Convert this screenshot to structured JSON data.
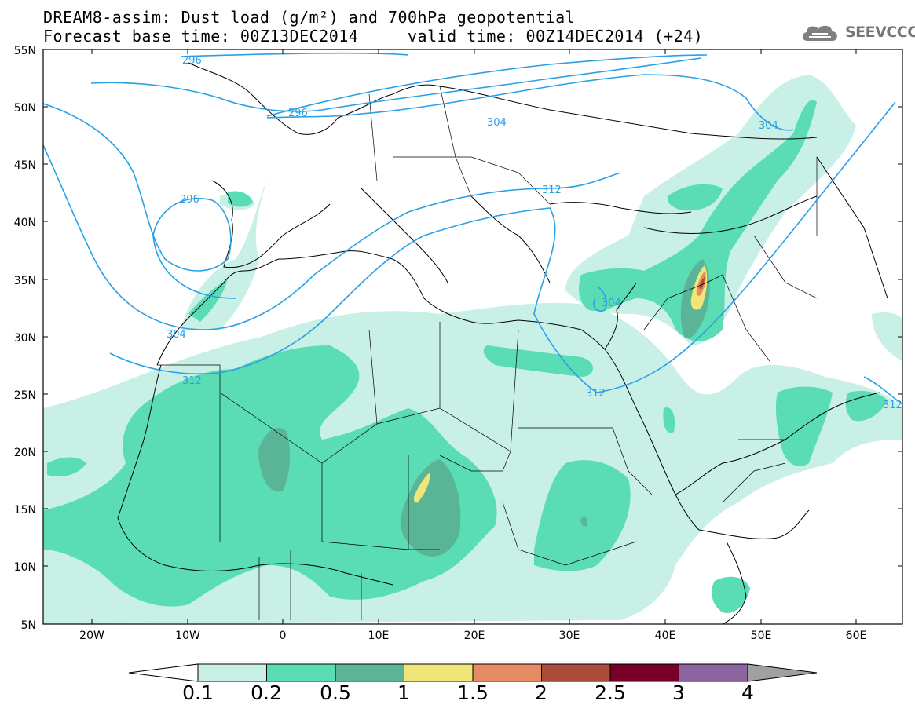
{
  "header": {
    "title_line1": "DREAM8-assim: Dust load (g/m²) and 700hPa geopotential",
    "title_line2": "Forecast base time: 00Z13DEC2014     valid time: 00Z14DEC2014 (+24)",
    "logo_text": "SEEVCCC"
  },
  "map": {
    "lat_labels": [
      "55N",
      "50N",
      "45N",
      "40N",
      "35N",
      "30N",
      "25N",
      "20N",
      "15N",
      "10N",
      "5N"
    ],
    "lon_labels": [
      "20W",
      "10W",
      "0",
      "10E",
      "20E",
      "30E",
      "40E",
      "50E",
      "60E"
    ],
    "contour_labels": [
      "296",
      "296",
      "296",
      "304",
      "304",
      "304",
      "304",
      "312",
      "312",
      "312",
      "312"
    ]
  },
  "colorbar": {
    "levels": [
      "0.1",
      "0.2",
      "0.5",
      "1",
      "1.5",
      "2",
      "2.5",
      "3",
      "4"
    ],
    "colors": [
      "#c8f0e6",
      "#5adcb4",
      "#5ab496",
      "#f0e678",
      "#e68c64",
      "#aa4b3c",
      "#780028",
      "#8c64a0"
    ],
    "under_color": "#ffffff",
    "over_color": "#a0a0a0"
  }
}
